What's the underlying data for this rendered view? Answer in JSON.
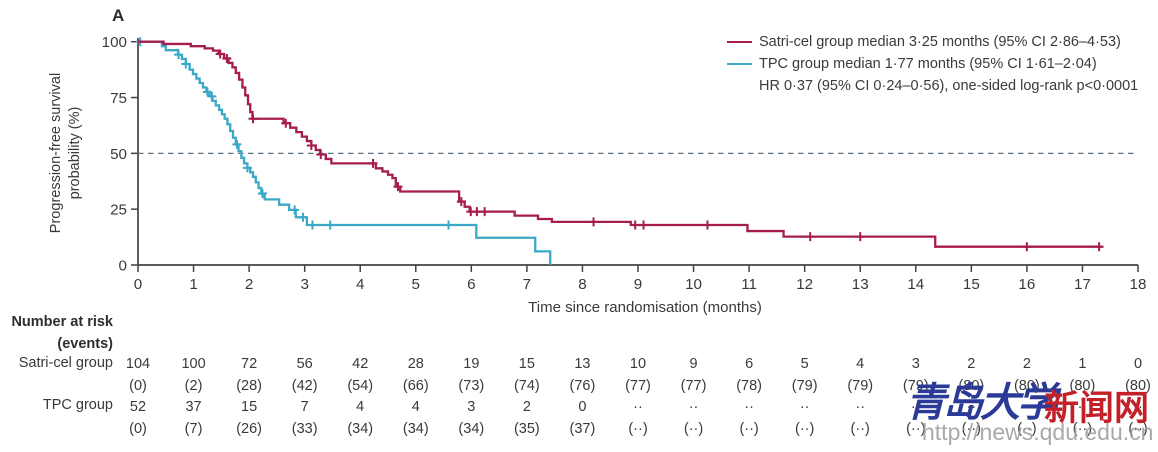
{
  "panel_label": "A",
  "colors": {
    "satri": "#a61c4f",
    "tpc": "#3ba8c8",
    "axis": "#434343",
    "text": "#3a3a3a",
    "reference_line": "#5d7183",
    "watermark_blue": "#2b3a97",
    "watermark_red": "#c32027",
    "watermark_gray": "#9b9b9b"
  },
  "legend": {
    "satri_label": "Satri-cel group median 3·25 months (95% CI 2·86–4·53)",
    "tpc_label": "TPC group median 1·77 months (95% CI 1·61–2·04)",
    "hr_label": "HR 0·37 (95% CI 0·24–0·56), one-sided log-rank p<0·0001"
  },
  "chart_data": {
    "type": "line",
    "subtype": "kaplan-meier-step",
    "title": "A",
    "xlabel": "Time since randomisation (months)",
    "ylabel": "Progression-free survival probability (%)",
    "ylabel_lines": [
      "Progression-free survival",
      "probability (%)"
    ],
    "xlim": [
      0,
      18
    ],
    "ylim": [
      0,
      100
    ],
    "xticks": [
      0,
      1,
      2,
      3,
      4,
      5,
      6,
      7,
      8,
      9,
      10,
      11,
      12,
      13,
      14,
      15,
      16,
      17,
      18
    ],
    "yticks": [
      0,
      25,
      50,
      75,
      100
    ],
    "grid": false,
    "legend_position": "top-right",
    "reference_line_y": 50,
    "annotation": "HR 0·37 (95% CI 0·24–0·56), one-sided log-rank p<0·0001",
    "series": [
      {
        "name": "Satri-cel group",
        "median_months": "3·25",
        "ci_95": "2·86–4·53",
        "color": "#a61c4f",
        "end_t": 17.35,
        "steps": [
          [
            0,
            100
          ],
          [
            0.46,
            99
          ],
          [
            0.95,
            98
          ],
          [
            1.2,
            97
          ],
          [
            1.35,
            96
          ],
          [
            1.45,
            94.5
          ],
          [
            1.55,
            92.5
          ],
          [
            1.63,
            90.5
          ],
          [
            1.7,
            88.5
          ],
          [
            1.76,
            86
          ],
          [
            1.82,
            83
          ],
          [
            1.88,
            79.5
          ],
          [
            1.93,
            76
          ],
          [
            1.98,
            72
          ],
          [
            2.02,
            68.5
          ],
          [
            2.06,
            65.5
          ],
          [
            2.62,
            63.5
          ],
          [
            2.74,
            61.5
          ],
          [
            2.85,
            59.5
          ],
          [
            2.95,
            57.5
          ],
          [
            3.04,
            55.5
          ],
          [
            3.12,
            53.5
          ],
          [
            3.2,
            51.5
          ],
          [
            3.28,
            49.5
          ],
          [
            3.38,
            47.5
          ],
          [
            3.48,
            45.5
          ],
          [
            4.28,
            43.3
          ],
          [
            4.4,
            41.9
          ],
          [
            4.5,
            40.4
          ],
          [
            4.58,
            38.9
          ],
          [
            4.64,
            35.1
          ],
          [
            4.72,
            32.9
          ],
          [
            5.78,
            28.4
          ],
          [
            5.88,
            26.1
          ],
          [
            5.97,
            23.9
          ],
          [
            6.78,
            22.1
          ],
          [
            7.2,
            20.6
          ],
          [
            7.45,
            19.3
          ],
          [
            8.87,
            17.9
          ],
          [
            10.97,
            15.2
          ],
          [
            11.62,
            12.7
          ],
          [
            14.35,
            8.2
          ]
        ],
        "censor_times": [
          1.48,
          1.6,
          2.07,
          2.66,
          3.12,
          3.29,
          4.23,
          4.68,
          5.82,
          5.99,
          6.1,
          6.24,
          8.2,
          8.95,
          9.1,
          10.25,
          12.1,
          13.0,
          16.0,
          17.3
        ]
      },
      {
        "name": "TPC group",
        "median_months": "1·77",
        "ci_95": "1·61–2·04",
        "color": "#3ba8c8",
        "end_t": 7.42,
        "steps": [
          [
            0,
            100
          ],
          [
            0.43,
            98
          ],
          [
            0.5,
            96.2
          ],
          [
            0.72,
            94.2
          ],
          [
            0.79,
            92.3
          ],
          [
            0.86,
            90
          ],
          [
            0.93,
            87.5
          ],
          [
            0.99,
            85.5
          ],
          [
            1.05,
            83.5
          ],
          [
            1.11,
            81.5
          ],
          [
            1.17,
            79.5
          ],
          [
            1.23,
            77.5
          ],
          [
            1.29,
            75.5
          ],
          [
            1.34,
            73.5
          ],
          [
            1.4,
            71.5
          ],
          [
            1.46,
            69.5
          ],
          [
            1.51,
            67.5
          ],
          [
            1.56,
            65.5
          ],
          [
            1.61,
            63
          ],
          [
            1.66,
            60
          ],
          [
            1.71,
            57
          ],
          [
            1.76,
            54
          ],
          [
            1.81,
            51
          ],
          [
            1.86,
            48
          ],
          [
            1.91,
            45.5
          ],
          [
            1.97,
            43.5
          ],
          [
            2.02,
            41.5
          ],
          [
            2.07,
            39.5
          ],
          [
            2.12,
            37
          ],
          [
            2.17,
            34.5
          ],
          [
            2.22,
            32
          ],
          [
            2.28,
            29.4
          ],
          [
            2.54,
            27
          ],
          [
            2.72,
            24.7
          ],
          [
            2.84,
            21.4
          ],
          [
            3.04,
            17.9
          ],
          [
            6.09,
            12.2
          ],
          [
            7.15,
            6.1
          ],
          [
            7.42,
            0
          ]
        ],
        "censor_times": [
          0.04,
          0.73,
          0.86,
          1.25,
          1.33,
          1.78,
          1.97,
          2.24,
          2.82,
          2.97,
          3.14,
          3.46,
          5.59
        ]
      }
    ]
  },
  "risk_table": {
    "header_line1": "Number at risk",
    "header_line2": "(events)",
    "rows": [
      {
        "label": "Satri-cel group",
        "counts": [
          "104",
          "100",
          "72",
          "56",
          "42",
          "28",
          "19",
          "15",
          "13",
          "10",
          "9",
          "6",
          "5",
          "4",
          "3",
          "2",
          "2",
          "1",
          "0"
        ],
        "events": [
          "(0)",
          "(2)",
          "(28)",
          "(42)",
          "(54)",
          "(66)",
          "(73)",
          "(74)",
          "(76)",
          "(77)",
          "(77)",
          "(78)",
          "(79)",
          "(79)",
          "(79)",
          "(80)",
          "(80)",
          "(80)",
          "(80)"
        ]
      },
      {
        "label": "TPC group",
        "counts": [
          "52",
          "37",
          "15",
          "7",
          "4",
          "4",
          "3",
          "2",
          "0",
          "··",
          "··",
          "··",
          "··",
          "··",
          "··",
          "··",
          "··",
          "··",
          "··"
        ],
        "events": [
          "(0)",
          "(7)",
          "(26)",
          "(33)",
          "(34)",
          "(34)",
          "(34)",
          "(35)",
          "(37)",
          "(··)",
          "(··)",
          "(··)",
          "(··)",
          "(··)",
          "(··)",
          "(··)",
          "(··)",
          "(··)",
          "(··)"
        ]
      }
    ]
  },
  "watermark": {
    "cn_blue": "青岛大学",
    "cn_red": "新闻网",
    "url": "http://news.qdu.edu.cn"
  }
}
